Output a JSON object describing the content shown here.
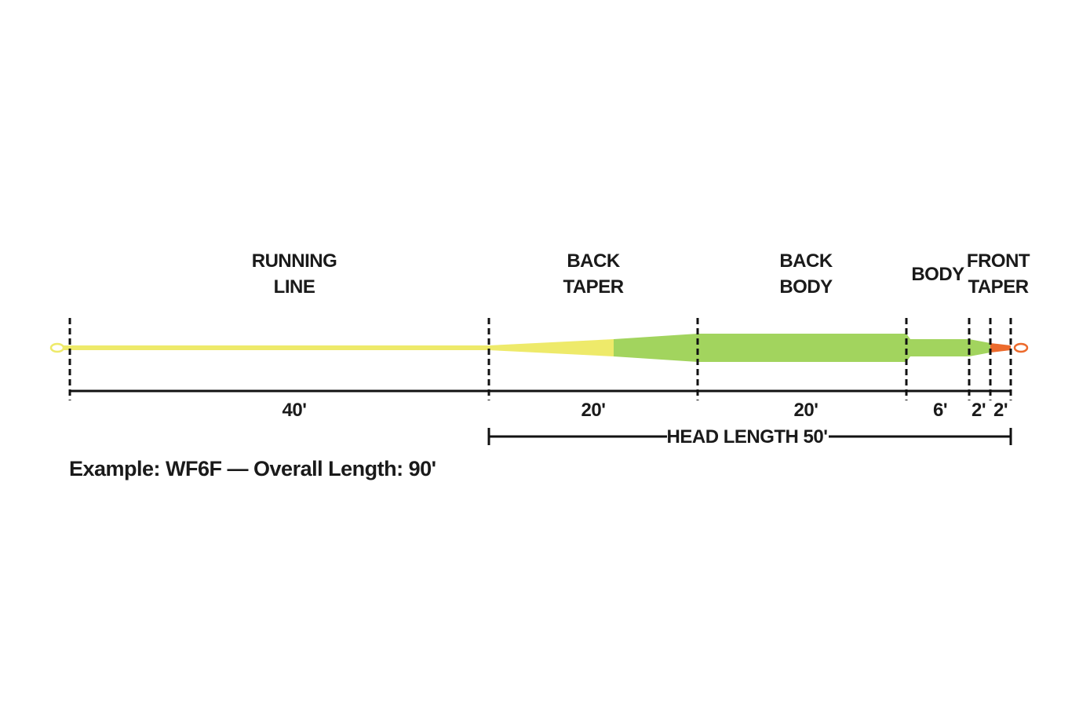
{
  "labels": [
    {
      "lines": [
        "RUNNING",
        "LINE"
      ]
    },
    {
      "lines": [
        "BACK",
        "TAPER"
      ]
    },
    {
      "lines": [
        "BACK",
        "BODY"
      ]
    },
    {
      "lines": [
        "BODY"
      ]
    },
    {
      "lines": [
        "FRONT",
        "TAPER"
      ]
    }
  ],
  "lengths": [
    "40'",
    "20'",
    "20'",
    "6'",
    "2'",
    "2'"
  ],
  "head_length": "HEAD LENGTH 50'",
  "caption": "Example: WF6F — Overall Length: 90'"
}
